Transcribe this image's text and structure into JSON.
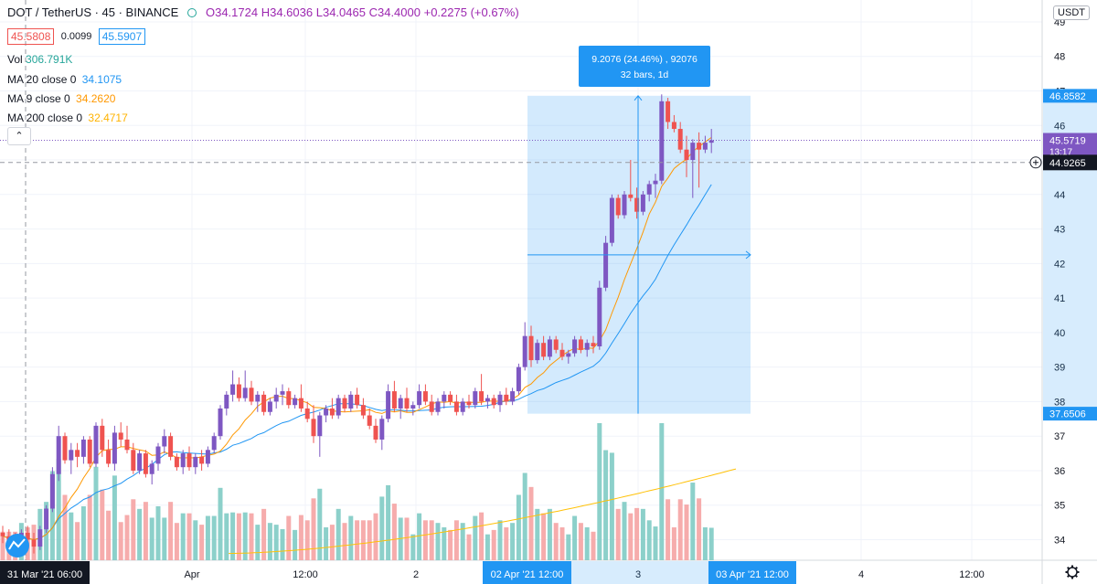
{
  "header": {
    "symbol": "DOT / TetherUS · 45 · BINANCE",
    "open": "O34.1724",
    "high": "H34.6036",
    "low": "L34.0465",
    "close": "C34.4000",
    "change": "+0.2275 (+0.67%)",
    "bid": "45.5808",
    "spread": "0.0099",
    "ask": "45.5907"
  },
  "indicators": {
    "vol_label": "Vol",
    "vol_value": "306.791K",
    "ma20_label": "MA 20 close 0",
    "ma20_value": "34.1075",
    "ma9_label": "MA 9 close 0",
    "ma9_value": "34.2620",
    "ma200_label": "MA 200 close 0",
    "ma200_value": "32.4717"
  },
  "axis_button": "USDT",
  "collapse_icon": "chevron-up-icon",
  "colors": {
    "up": "#7e57c2",
    "down": "#ef5350",
    "vol_up": "#80cbc4",
    "vol_down": "#f5a3a3",
    "ma20": "#2196f3",
    "ma9": "#ff9800",
    "ma200": "#ffc107",
    "measure": "#2196f3"
  },
  "measure": {
    "line1": "9.2076 (24.46%) , 92076",
    "line2": "32 bars, 1d"
  },
  "price_tags": {
    "range_top": "46.8582",
    "last": "45.5719",
    "countdown": "13:17",
    "crosshair": "44.9265",
    "range_bottom": "37.6506"
  },
  "time_tags": {
    "crosshair": "31 Mar '21   06:00",
    "range_start": "02 Apr '21   12:00",
    "range_end": "03 Apr '21   12:00"
  },
  "chart_data": {
    "type": "candlestick",
    "y_ticks": [
      34,
      35,
      36,
      37,
      38,
      39,
      40,
      41,
      42,
      43,
      44,
      45,
      46,
      47,
      48,
      49
    ],
    "ylim": [
      33.6,
      49.4
    ],
    "x_ticks": [
      "Apr",
      "12:00",
      "2",
      "3",
      "4",
      "12:00"
    ],
    "candles": [
      [
        34.2,
        34.4,
        33.9,
        34.1
      ],
      [
        34.1,
        34.3,
        33.8,
        34.0
      ],
      [
        34.0,
        34.2,
        33.7,
        33.9
      ],
      [
        33.9,
        34.3,
        33.8,
        34.2
      ],
      [
        34.2,
        34.4,
        33.9,
        34.0
      ],
      [
        34.0,
        34.2,
        33.6,
        33.8
      ],
      [
        33.8,
        34.4,
        33.7,
        34.3
      ],
      [
        34.3,
        35.0,
        34.2,
        34.9
      ],
      [
        34.9,
        36.1,
        34.8,
        35.9
      ],
      [
        35.9,
        37.3,
        35.7,
        37.0
      ],
      [
        37.0,
        37.1,
        36.2,
        36.3
      ],
      [
        36.3,
        36.8,
        35.9,
        36.6
      ],
      [
        36.6,
        36.8,
        36.1,
        36.4
      ],
      [
        36.4,
        37.0,
        36.2,
        36.9
      ],
      [
        36.9,
        37.0,
        36.1,
        36.2
      ],
      [
        36.2,
        37.4,
        36.1,
        37.3
      ],
      [
        37.3,
        37.5,
        36.4,
        36.6
      ],
      [
        36.6,
        36.9,
        36.1,
        36.2
      ],
      [
        36.2,
        37.3,
        36.0,
        37.1
      ],
      [
        37.1,
        37.4,
        36.7,
        36.9
      ],
      [
        36.9,
        37.3,
        36.5,
        36.6
      ],
      [
        36.6,
        36.8,
        35.9,
        36.0
      ],
      [
        36.0,
        36.6,
        35.9,
        36.5
      ],
      [
        36.5,
        36.6,
        35.8,
        35.9
      ],
      [
        35.9,
        36.3,
        35.6,
        36.2
      ],
      [
        36.2,
        36.8,
        36.0,
        36.7
      ],
      [
        36.7,
        37.2,
        36.5,
        37.0
      ],
      [
        37.0,
        37.1,
        36.3,
        36.4
      ],
      [
        36.4,
        36.5,
        36.0,
        36.1
      ],
      [
        36.1,
        36.6,
        35.9,
        36.5
      ],
      [
        36.5,
        36.7,
        36.0,
        36.1
      ],
      [
        36.1,
        36.5,
        35.9,
        36.4
      ],
      [
        36.4,
        36.6,
        36.0,
        36.2
      ],
      [
        36.2,
        36.7,
        36.1,
        36.6
      ],
      [
        36.6,
        37.1,
        36.5,
        37.0
      ],
      [
        37.0,
        37.9,
        36.9,
        37.8
      ],
      [
        37.8,
        38.3,
        37.6,
        38.2
      ],
      [
        38.2,
        38.9,
        38.0,
        38.5
      ],
      [
        38.5,
        38.7,
        38.0,
        38.1
      ],
      [
        38.1,
        38.9,
        38.0,
        38.4
      ],
      [
        38.4,
        38.6,
        37.9,
        38.0
      ],
      [
        38.0,
        38.3,
        37.7,
        38.2
      ],
      [
        38.2,
        38.3,
        37.6,
        37.7
      ],
      [
        37.7,
        38.1,
        37.6,
        38.0
      ],
      [
        38.0,
        38.4,
        37.8,
        38.2
      ],
      [
        38.2,
        38.5,
        37.9,
        38.3
      ],
      [
        38.3,
        38.4,
        37.8,
        37.9
      ],
      [
        37.9,
        38.2,
        37.8,
        38.1
      ],
      [
        38.1,
        38.5,
        37.7,
        37.8
      ],
      [
        37.8,
        38.0,
        37.4,
        37.5
      ],
      [
        37.5,
        37.9,
        36.8,
        37.0
      ],
      [
        37.0,
        37.7,
        36.4,
        37.6
      ],
      [
        37.6,
        37.9,
        37.4,
        37.8
      ],
      [
        37.8,
        38.1,
        37.5,
        37.6
      ],
      [
        37.6,
        38.2,
        37.5,
        38.1
      ],
      [
        38.1,
        38.2,
        37.7,
        37.8
      ],
      [
        37.8,
        38.3,
        37.7,
        38.2
      ],
      [
        38.2,
        38.4,
        37.8,
        37.9
      ],
      [
        37.9,
        38.1,
        37.5,
        37.6
      ],
      [
        37.6,
        37.8,
        37.2,
        37.3
      ],
      [
        37.3,
        37.5,
        36.8,
        36.9
      ],
      [
        36.9,
        37.6,
        36.6,
        37.5
      ],
      [
        37.5,
        38.5,
        37.4,
        38.3
      ],
      [
        38.3,
        38.6,
        37.7,
        37.8
      ],
      [
        37.8,
        38.2,
        37.5,
        38.1
      ],
      [
        38.1,
        38.4,
        37.7,
        37.8
      ],
      [
        37.8,
        38.0,
        37.6,
        37.9
      ],
      [
        37.9,
        38.5,
        37.8,
        38.3
      ],
      [
        38.3,
        38.5,
        37.9,
        38.0
      ],
      [
        38.0,
        38.2,
        37.6,
        37.7
      ],
      [
        37.7,
        38.1,
        37.6,
        38.0
      ],
      [
        38.0,
        38.3,
        37.8,
        38.2
      ],
      [
        38.2,
        38.3,
        37.9,
        38.0
      ],
      [
        38.0,
        38.2,
        37.6,
        37.7
      ],
      [
        37.7,
        38.1,
        37.6,
        38.0
      ],
      [
        38.0,
        38.2,
        37.8,
        37.9
      ],
      [
        37.9,
        38.4,
        37.8,
        38.3
      ],
      [
        38.3,
        38.8,
        37.9,
        38.0
      ],
      [
        38.0,
        38.2,
        37.8,
        38.1
      ],
      [
        38.1,
        38.2,
        37.8,
        37.9
      ],
      [
        37.9,
        38.3,
        37.7,
        38.2
      ],
      [
        38.2,
        38.4,
        37.9,
        38.0
      ],
      [
        38.0,
        38.4,
        37.9,
        38.3
      ],
      [
        38.3,
        39.1,
        38.2,
        39.0
      ],
      [
        39.0,
        40.3,
        38.9,
        39.9
      ],
      [
        39.9,
        40.2,
        39.0,
        39.2
      ],
      [
        39.2,
        39.8,
        39.1,
        39.7
      ],
      [
        39.7,
        39.9,
        39.2,
        39.3
      ],
      [
        39.3,
        39.9,
        39.2,
        39.8
      ],
      [
        39.8,
        39.9,
        39.4,
        39.5
      ],
      [
        39.5,
        39.7,
        39.2,
        39.3
      ],
      [
        39.3,
        39.5,
        39.1,
        39.4
      ],
      [
        39.4,
        39.9,
        39.3,
        39.8
      ],
      [
        39.8,
        39.9,
        39.4,
        39.5
      ],
      [
        39.5,
        39.8,
        39.3,
        39.7
      ],
      [
        39.7,
        39.9,
        39.4,
        39.6
      ],
      [
        39.6,
        41.5,
        39.5,
        41.3
      ],
      [
        41.3,
        42.8,
        41.2,
        42.6
      ],
      [
        42.6,
        44.0,
        42.5,
        43.9
      ],
      [
        43.9,
        44.0,
        43.3,
        43.4
      ],
      [
        43.4,
        44.1,
        43.3,
        44.0
      ],
      [
        44.0,
        45.0,
        43.8,
        43.9
      ],
      [
        43.9,
        44.2,
        43.3,
        43.5
      ],
      [
        43.5,
        44.1,
        43.4,
        44.0
      ],
      [
        44.0,
        44.4,
        43.8,
        44.3
      ],
      [
        44.3,
        44.6,
        43.9,
        44.4
      ],
      [
        44.4,
        46.9,
        44.3,
        46.7
      ],
      [
        46.7,
        46.8,
        45.9,
        46.1
      ],
      [
        46.1,
        46.3,
        45.8,
        45.9
      ],
      [
        45.9,
        46.1,
        45.2,
        45.3
      ],
      [
        45.3,
        45.7,
        44.5,
        45.0
      ],
      [
        45.0,
        45.6,
        43.9,
        45.5
      ],
      [
        45.5,
        45.8,
        44.2,
        45.3
      ],
      [
        45.3,
        45.7,
        45.2,
        45.5
      ],
      [
        45.5,
        45.9,
        45.2,
        45.57
      ]
    ]
  }
}
